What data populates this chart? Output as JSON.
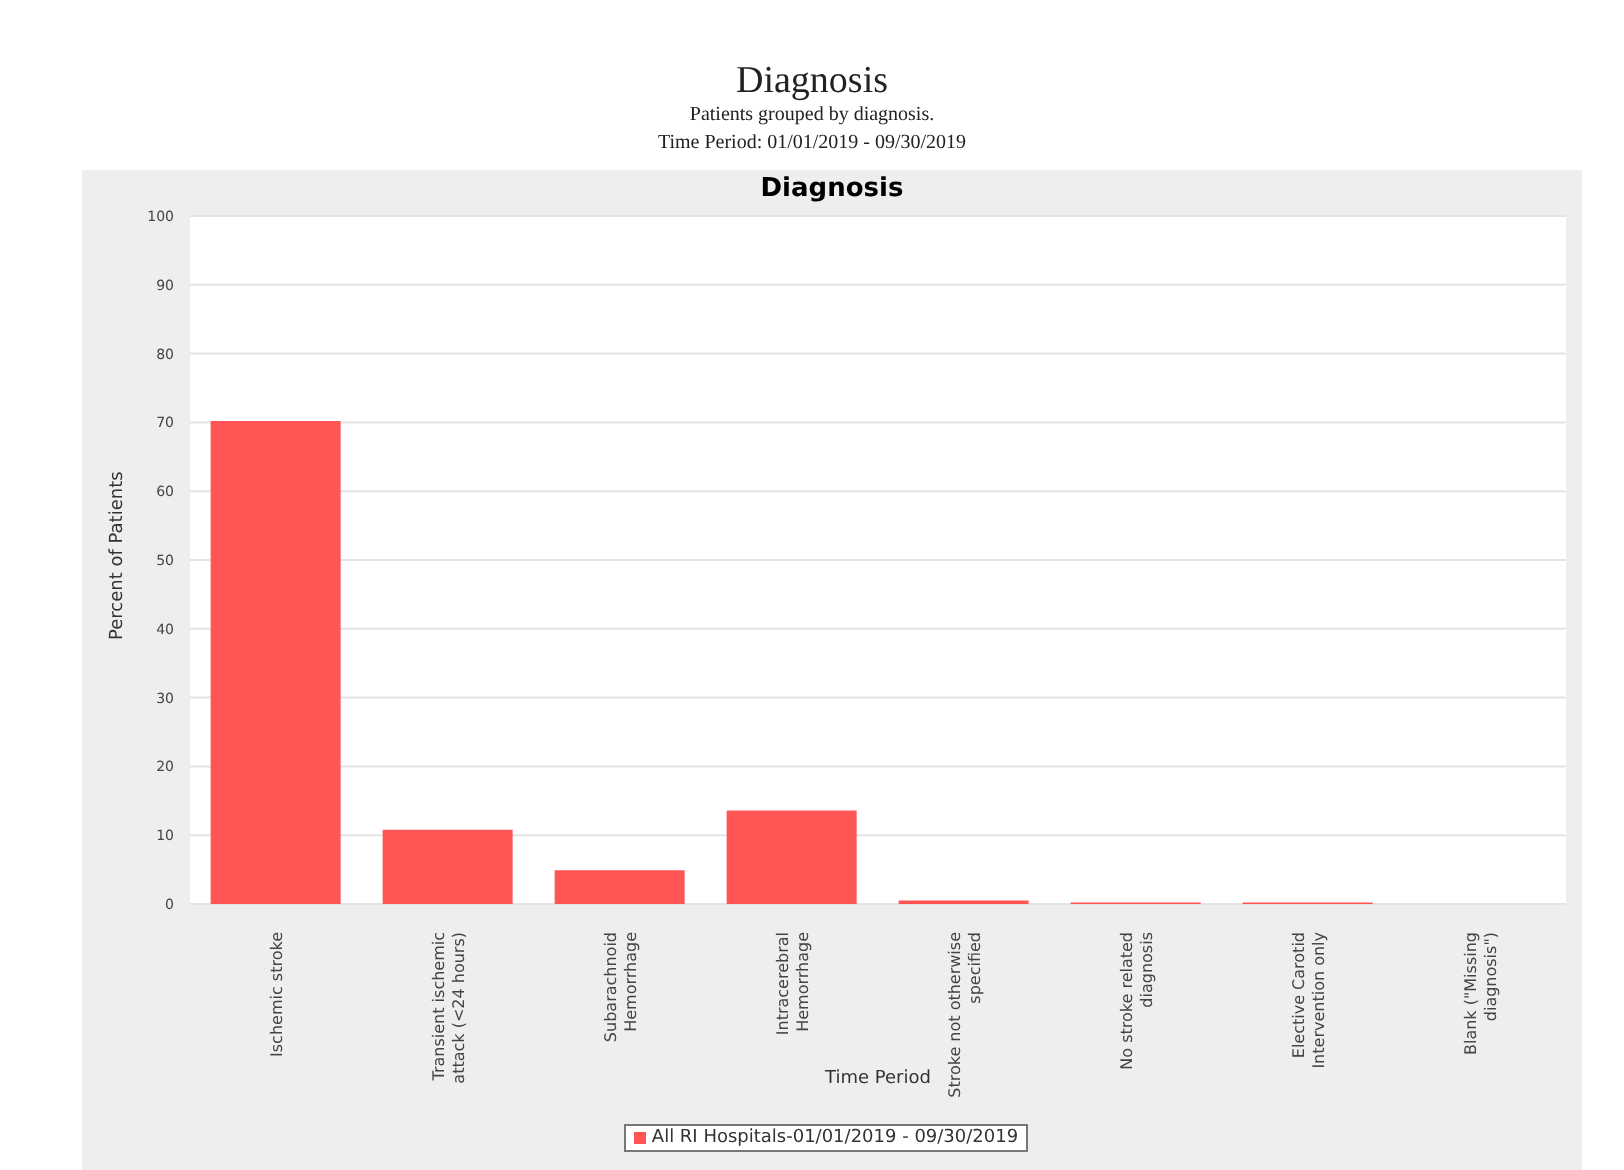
{
  "chart_data": {
    "type": "bar",
    "title": "Diagnosis",
    "subtitle": "Patients grouped by diagnosis.",
    "annotations": [
      "Time Period: 01/01/2019 - 09/30/2019",
      "Diagnosis"
    ],
    "xlabel": "Time Period",
    "ylabel": "Percent of Patients",
    "categories": [
      "Ischemic stroke",
      "Transient ischemic attack (<24 hours)",
      "Subarachnoid Hemorrhage",
      "Intracerebral Hemorrhage",
      "Stroke not otherwise specified",
      "No stroke related diagnosis",
      "Elective Carotid Intervention only",
      "Blank (\"Missing diagnosis\")"
    ],
    "series": [
      {
        "name": "All RI Hospitals-01/01/2019 - 09/30/2019",
        "color": "#ff5555",
        "values": [
          70.2,
          10.8,
          4.9,
          13.6,
          0.5,
          0.2,
          0.2,
          0
        ]
      }
    ],
    "ylim": [
      0,
      100
    ],
    "yticks": [
      0,
      10,
      20,
      30,
      40,
      50,
      60,
      70,
      80,
      90,
      100
    ],
    "grid": "y",
    "legend": "bottom"
  }
}
